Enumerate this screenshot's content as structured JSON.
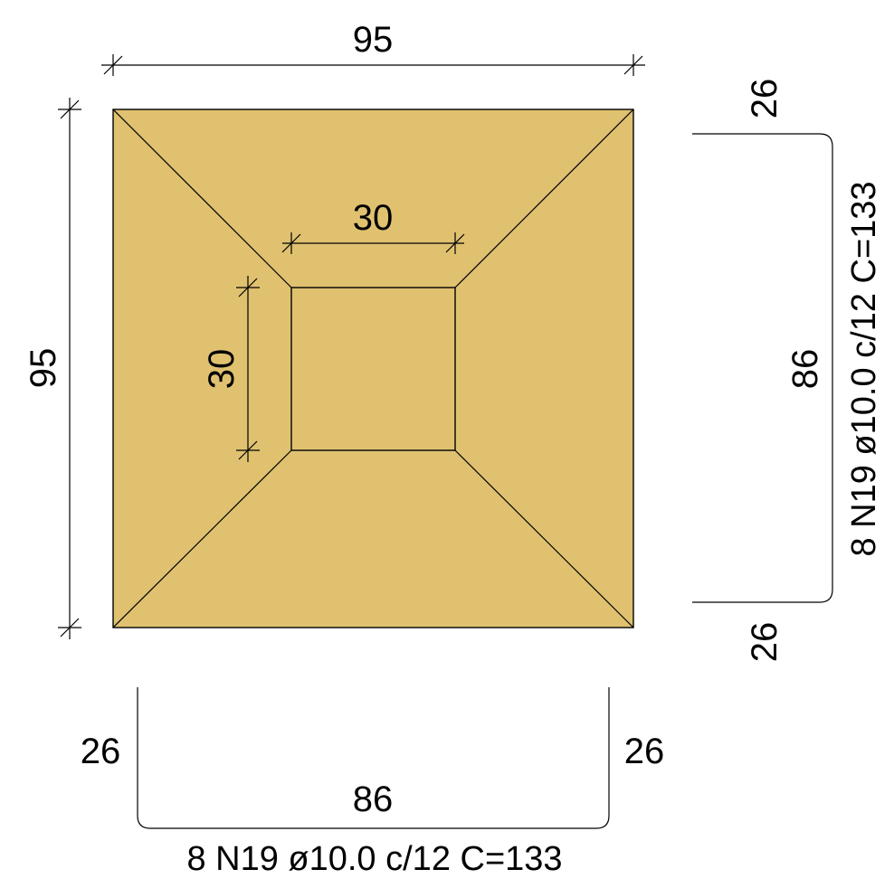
{
  "colors": {
    "concrete_fill": "#dfc170",
    "line": "#000000",
    "background": "#ffffff"
  },
  "footing": {
    "width_label": "95",
    "depth_label": "95",
    "column_width_label": "30",
    "column_depth_label": "30"
  },
  "rebar_right": {
    "top_leg_label": "26",
    "bottom_leg_label": "26",
    "span_label": "86",
    "spec_label": "8 N19 ø10.0 c/12 C=133"
  },
  "rebar_bottom": {
    "left_leg_label": "26",
    "right_leg_label": "26",
    "span_label": "86",
    "spec_label": "8 N19 ø10.0 c/12 C=133"
  }
}
